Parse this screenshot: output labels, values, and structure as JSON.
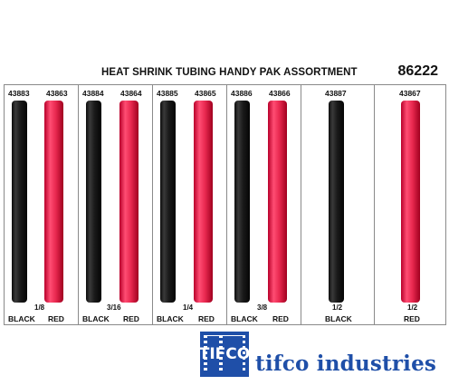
{
  "header": {
    "title": "HEAT SHRINK TUBING HANDY PAK ASSORTMENT",
    "part_number": "86222"
  },
  "panels": [
    {
      "black_code": "43883",
      "red_code": "43863",
      "size": "1/8",
      "black_label": "BLACK",
      "red_label": "RED"
    },
    {
      "black_code": "43884",
      "red_code": "43864",
      "size": "3/16",
      "black_label": "BLACK",
      "red_label": "RED"
    },
    {
      "black_code": "43885",
      "red_code": "43865",
      "size": "1/4",
      "black_label": "BLACK",
      "red_label": "RED"
    },
    {
      "black_code": "43886",
      "red_code": "43866",
      "size": "3/8",
      "black_label": "BLACK",
      "red_label": "RED"
    },
    {
      "code": "43887",
      "size": "1/2",
      "color_label": "BLACK"
    },
    {
      "code": "43867",
      "size": "1/2",
      "color_label": "RED"
    }
  ],
  "brand": {
    "name": "tifco industries",
    "logo_text": "TIFCO",
    "color": "#1f4fa8"
  },
  "colors": {
    "tube_black": "#111111",
    "tube_red": "#e8284f"
  }
}
